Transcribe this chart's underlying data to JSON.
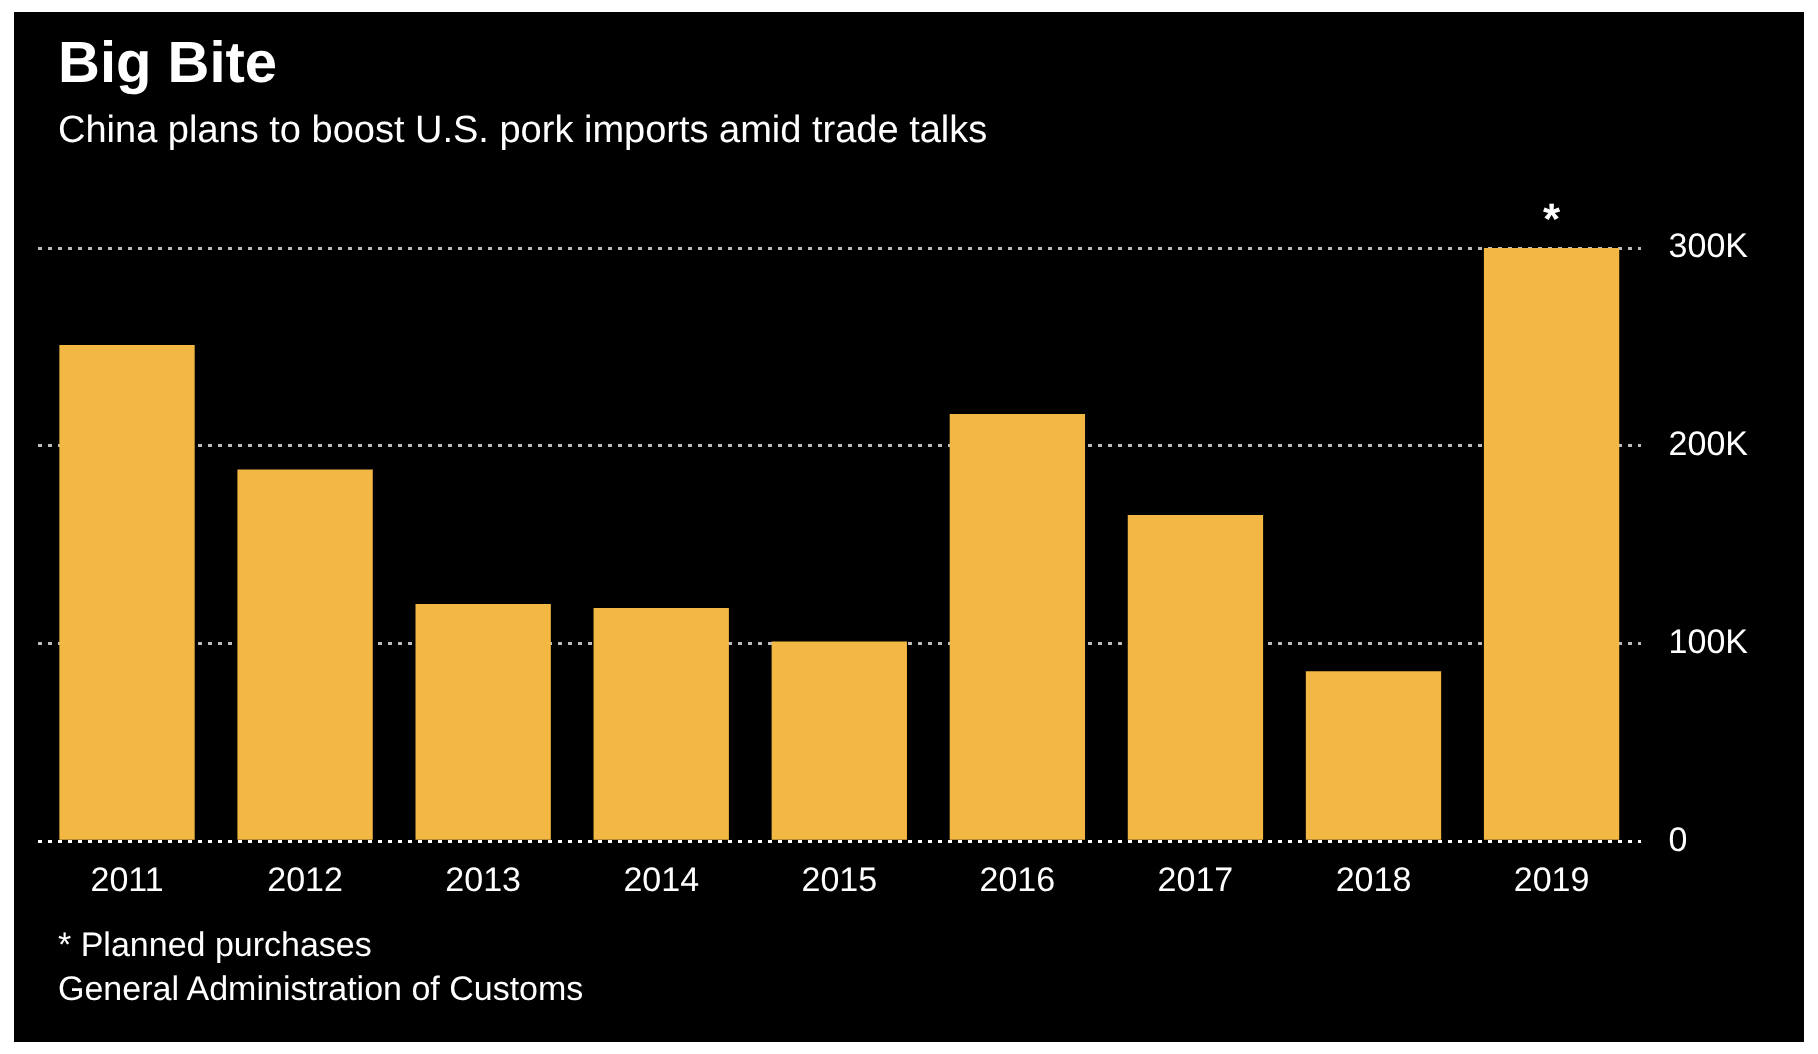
{
  "chart_data": {
    "type": "bar",
    "title": "Big Bite",
    "subtitle": "China plans to boost U.S. pork imports amid trade talks",
    "categories": [
      "2011",
      "2012",
      "2013",
      "2014",
      "2015",
      "2016",
      "2017",
      "2018",
      "2019"
    ],
    "values": [
      251000,
      188000,
      120000,
      118000,
      101000,
      216000,
      165000,
      86000,
      300000
    ],
    "color": "#f2b843",
    "ylim": [
      0,
      300000
    ],
    "yticks": [
      {
        "value": 0,
        "label": "0"
      },
      {
        "value": 100000,
        "label": "100K"
      },
      {
        "value": 200000,
        "label": "200K"
      },
      {
        "value": 300000,
        "label": "300K"
      }
    ],
    "grid": "y",
    "legend": false,
    "annotations": [
      {
        "text": "*",
        "x": "2019",
        "y": 300000
      },
      "* Planned purchases",
      "General Administration of Customs"
    ]
  }
}
